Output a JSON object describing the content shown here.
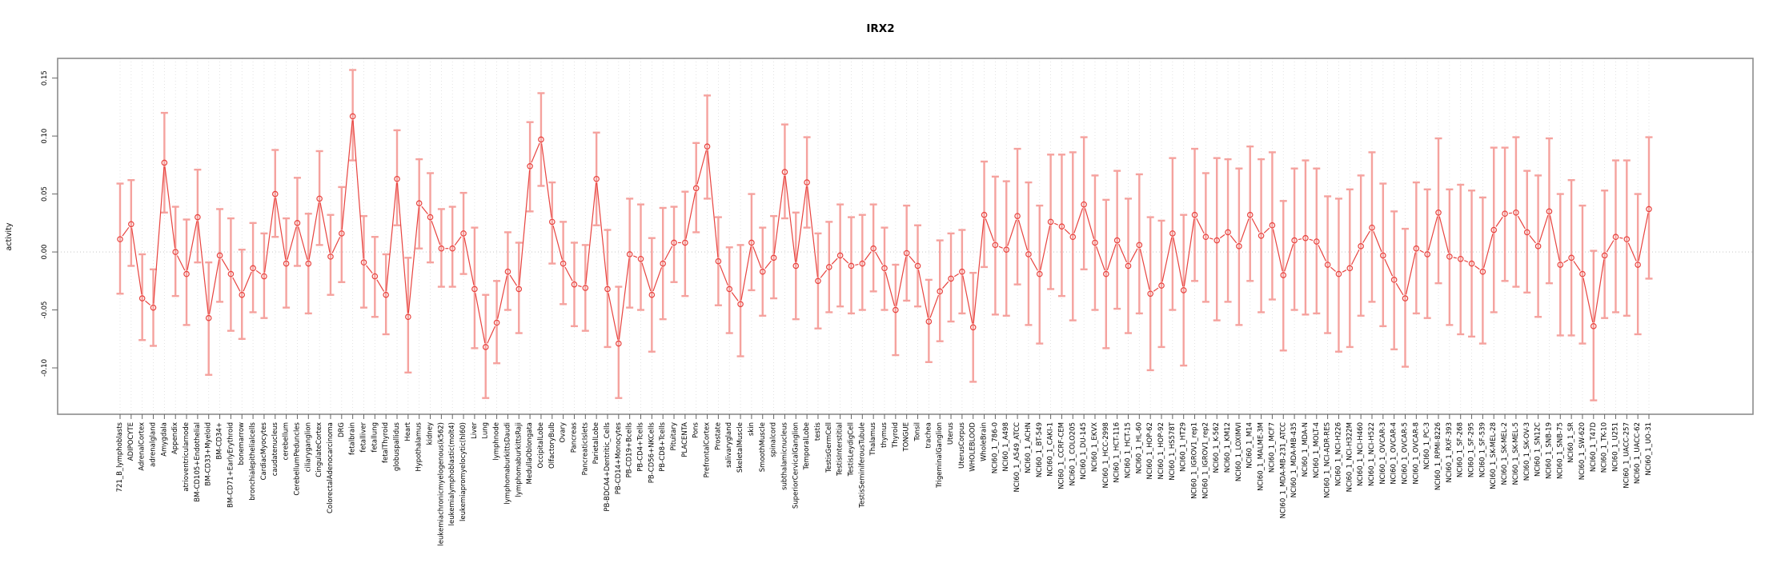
{
  "page": {
    "title": "IRX2"
  },
  "chart_data": {
    "type": "scatter",
    "title": "IRX2",
    "ylabel": "activity",
    "xlabel": "",
    "ylim": [
      -0.14,
      0.167
    ],
    "yticks": [
      -0.1,
      -0.05,
      0.0,
      0.05,
      0.1,
      0.15
    ],
    "grid": "vertical-dotted-per-category",
    "zero_line": true,
    "legend": "none",
    "point_style": "open-circle-with-error-bars",
    "point_color": "#e8433f",
    "error_bar_color": "#f5a29e",
    "grid_color": "#dcdcdc",
    "box_color": "#8c8c8c",
    "categories": [
      "721_B_lymphoblasts",
      "ADIPOCYTE",
      "AdrenalCortex",
      "adrenalgland",
      "Amygdala",
      "Appendix",
      "atrioventricularnode",
      "BM-CD105+Endothelial",
      "BM-CD33+Myeloid",
      "BM-CD34+",
      "BM-CD71+EarlyErythroid",
      "bonemarrow",
      "bronchialepithelialcells",
      "CardiacMyocytes",
      "caudatenucleus",
      "cerebellum",
      "CerebellumPeduncles",
      "ciliaryganglion",
      "CingulateCortex",
      "ColorectalAdenocarcinoma",
      "DRG",
      "fetalbrain",
      "fetalliver",
      "fetallung",
      "fetalThyroid",
      "globuspallidus",
      "Heart",
      "Hypothalamus",
      "kidney",
      "leukemiachronicmyelogenous(k562)",
      "leukemialymphoblastic(molt4)",
      "leukemiapromyelocytic(hl60)",
      "Liver",
      "Lung",
      "lymphnode",
      "lymphomaburkittsDaudi",
      "lymphomaburkittsRaji",
      "MedullaOblongata",
      "OccipitalLobe",
      "OlfactoryBulb",
      "Ovary",
      "Pancreas",
      "PancreaticIslets",
      "ParietalLobe",
      "PB-BDCA4+Dentritic_Cells",
      "PB-CD14+Monocytes",
      "PB-CD19+Bcells",
      "PB-CD4+Tcells",
      "PB-CD56+NKCells",
      "PB-CD8+Tcells",
      "Pituitary",
      "PLACENTA",
      "Pons",
      "PrefrontalCortex",
      "Prostate",
      "salivarygland",
      "SkeletalMuscle",
      "skin",
      "SmoothMuscle",
      "spinalcord",
      "subthalamicnucleus",
      "SuperiorCervicalGanglion",
      "TemporalLobe",
      "testis",
      "TestisGermCell",
      "TestisInterstitial",
      "TestisLeydigCell",
      "TestisSeminiferousTubule",
      "Thalamus",
      "thymus",
      "Thyroid",
      "TONGUE",
      "Tonsil",
      "trachea",
      "TrigeminalGanglion",
      "Uterus",
      "UterusCorpus",
      "WHOLEBLOOD",
      "WholeBrain",
      "NCI60_1_786-0",
      "NCI60_1_A498",
      "NCI60_1_A549_ATCC",
      "NCI60_1_ACHN",
      "NCI60_1_BT-549",
      "NCI60_1_CAKI-1",
      "NCI60_1_CCRF-CEM",
      "NCI60_1_COLO205",
      "NCI60_1_DU-145",
      "NCI60_1_EKVX",
      "NCI60_1_HCC-2998",
      "NCI60_1_HCT-116",
      "NCI60_1_HCT-15",
      "NCI60_1_HL-60",
      "NCI60_1_HOP-62",
      "NCI60_1_HOP-92",
      "NCI60_1_HS578T",
      "NCI60_1_HT29",
      "NCI60_1_IGROV1_rep1",
      "NCI60_1_IGROV1_rep2",
      "NCI60_1_K-562",
      "NCI60_1_KM12",
      "NCI60_1_LOXIMVI",
      "NCI60_1_M14",
      "NCI60_1_MALME-3M",
      "NCI60_1_MCF7",
      "NCI60_1_MDA-MB-231_ATCC",
      "NCI60_1_MDA-MB-435",
      "NCI60_1_MDA-N",
      "NCI60_1_MOLT-4",
      "NCI60_1_NCI-ADR-RES",
      "NCI60_1_NCI-H226",
      "NCI60_1_NCI-H322M",
      "NCI60_1_NCI-H460",
      "NCI60_1_NCI-H522",
      "NCI60_1_OVCAR-3",
      "NCI60_1_OVCAR-4",
      "NCI60_1_OVCAR-5",
      "NCI60_1_OVCAR-8",
      "NCI60_1_PC-3",
      "NCI60_1_RPMI-8226",
      "NCI60_1_RXF-393",
      "NCI60_1_SF-268",
      "NCI60_1_SF-295",
      "NCI60_1_SF-539",
      "NCI60_1_SK-MEL-28",
      "NCI60_1_SK-MEL-2",
      "NCI60_1_SK-MEL-5",
      "NCI60_1_SK-OV-3",
      "NCI60_1_SN12C",
      "NCI60_1_SNB-19",
      "NCI60_1_SNB-75",
      "NCI60_1_SR",
      "NCI60_1_SW-620",
      "NCI60_1_T47D",
      "NCI60_1_TK-10",
      "NCI60_1_U251",
      "NCI60_1_UACC-257",
      "NCI60_1_UACC-62",
      "NCI60_1_UO-31"
    ],
    "values": [
      0.011,
      0.024,
      -0.04,
      -0.048,
      0.077,
      0.0,
      -0.019,
      0.03,
      -0.057,
      -0.003,
      -0.019,
      -0.037,
      -0.014,
      -0.021,
      0.05,
      -0.01,
      0.025,
      -0.01,
      0.046,
      -0.004,
      0.016,
      0.117,
      -0.009,
      -0.021,
      -0.037,
      0.063,
      -0.056,
      0.042,
      0.03,
      0.003,
      0.003,
      0.016,
      -0.032,
      -0.082,
      -0.061,
      -0.017,
      -0.032,
      0.074,
      0.097,
      0.026,
      -0.01,
      -0.028,
      -0.031,
      0.063,
      -0.032,
      -0.079,
      -0.002,
      -0.006,
      -0.037,
      -0.01,
      0.008,
      0.008,
      0.055,
      0.091,
      -0.008,
      -0.032,
      -0.045,
      0.008,
      -0.017,
      -0.005,
      0.069,
      -0.012,
      0.06,
      -0.025,
      -0.013,
      -0.003,
      -0.012,
      -0.01,
      0.003,
      -0.014,
      -0.05,
      -0.001,
      -0.012,
      -0.06,
      -0.034,
      -0.023,
      -0.017,
      -0.065,
      0.032,
      0.006,
      0.002,
      0.031,
      -0.002,
      -0.019,
      0.026,
      0.022,
      0.013,
      0.041,
      0.008,
      -0.019,
      0.01,
      -0.012,
      0.006,
      -0.036,
      -0.029,
      0.016,
      -0.033,
      0.032,
      0.013,
      0.01,
      0.017,
      0.005,
      0.032,
      0.014,
      0.023,
      -0.02,
      0.01,
      0.012,
      0.009,
      -0.011,
      -0.019,
      -0.014,
      0.005,
      0.021,
      -0.003,
      -0.024,
      -0.04,
      0.003,
      -0.002,
      0.034,
      -0.004,
      -0.006,
      -0.01,
      -0.017,
      0.019,
      0.033,
      0.034,
      0.017,
      0.005,
      0.035,
      -0.011,
      -0.005,
      -0.019,
      -0.064,
      -0.003,
      0.013,
      0.011,
      -0.011,
      0.037
    ],
    "ci_low": [
      -0.036,
      -0.012,
      -0.076,
      -0.081,
      0.034,
      -0.038,
      -0.063,
      -0.009,
      -0.106,
      -0.043,
      -0.068,
      -0.075,
      -0.052,
      -0.057,
      0.013,
      -0.048,
      -0.012,
      -0.053,
      0.006,
      -0.037,
      -0.026,
      0.079,
      -0.048,
      -0.056,
      -0.071,
      0.023,
      -0.104,
      0.003,
      -0.009,
      -0.03,
      -0.03,
      -0.019,
      -0.083,
      -0.126,
      -0.096,
      -0.05,
      -0.07,
      0.035,
      0.057,
      -0.01,
      -0.045,
      -0.064,
      -0.068,
      0.023,
      -0.082,
      -0.126,
      -0.048,
      -0.05,
      -0.086,
      -0.058,
      -0.026,
      -0.038,
      0.017,
      0.046,
      -0.046,
      -0.07,
      -0.09,
      -0.033,
      -0.055,
      -0.04,
      0.029,
      -0.058,
      0.021,
      -0.066,
      -0.052,
      -0.047,
      -0.053,
      -0.05,
      -0.034,
      -0.05,
      -0.089,
      -0.042,
      -0.047,
      -0.095,
      -0.077,
      -0.06,
      -0.053,
      -0.112,
      -0.013,
      -0.054,
      -0.055,
      -0.028,
      -0.063,
      -0.079,
      -0.032,
      -0.038,
      -0.059,
      -0.015,
      -0.05,
      -0.083,
      -0.049,
      -0.07,
      -0.053,
      -0.102,
      -0.082,
      -0.05,
      -0.098,
      -0.025,
      -0.043,
      -0.059,
      -0.043,
      -0.063,
      -0.025,
      -0.052,
      -0.041,
      -0.085,
      -0.05,
      -0.054,
      -0.053,
      -0.07,
      -0.086,
      -0.082,
      -0.055,
      -0.043,
      -0.064,
      -0.084,
      -0.099,
      -0.053,
      -0.057,
      -0.027,
      -0.063,
      -0.071,
      -0.073,
      -0.079,
      -0.052,
      -0.025,
      -0.03,
      -0.035,
      -0.056,
      -0.027,
      -0.072,
      -0.072,
      -0.079,
      -0.128,
      -0.057,
      -0.052,
      -0.055,
      -0.071,
      -0.023
    ],
    "ci_high": [
      0.059,
      0.062,
      -0.002,
      -0.015,
      0.12,
      0.039,
      0.028,
      0.071,
      -0.009,
      0.037,
      0.029,
      0.002,
      0.025,
      0.016,
      0.088,
      0.029,
      0.064,
      0.033,
      0.087,
      0.032,
      0.056,
      0.157,
      0.031,
      0.013,
      -0.002,
      0.105,
      -0.005,
      0.08,
      0.068,
      0.037,
      0.039,
      0.051,
      0.021,
      -0.037,
      -0.025,
      0.017,
      0.008,
      0.112,
      0.137,
      0.06,
      0.026,
      0.008,
      0.006,
      0.103,
      0.019,
      -0.03,
      0.046,
      0.041,
      0.012,
      0.038,
      0.039,
      0.052,
      0.094,
      0.135,
      0.03,
      0.004,
      0.006,
      0.05,
      0.021,
      0.031,
      0.11,
      0.034,
      0.099,
      0.016,
      0.026,
      0.041,
      0.03,
      0.032,
      0.041,
      0.021,
      -0.011,
      0.04,
      0.023,
      -0.024,
      0.01,
      0.016,
      0.019,
      -0.018,
      0.078,
      0.065,
      0.061,
      0.089,
      0.06,
      0.04,
      0.084,
      0.084,
      0.086,
      0.099,
      0.066,
      0.045,
      0.07,
      0.046,
      0.067,
      0.03,
      0.027,
      0.081,
      0.032,
      0.089,
      0.068,
      0.081,
      0.08,
      0.072,
      0.091,
      0.08,
      0.086,
      0.044,
      0.072,
      0.079,
      0.072,
      0.048,
      0.046,
      0.054,
      0.066,
      0.086,
      0.059,
      0.035,
      0.02,
      0.06,
      0.054,
      0.098,
      0.054,
      0.058,
      0.053,
      0.047,
      0.09,
      0.09,
      0.099,
      0.07,
      0.066,
      0.098,
      0.05,
      0.062,
      0.04,
      0.001,
      0.053,
      0.079,
      0.079,
      0.05,
      0.099
    ]
  }
}
